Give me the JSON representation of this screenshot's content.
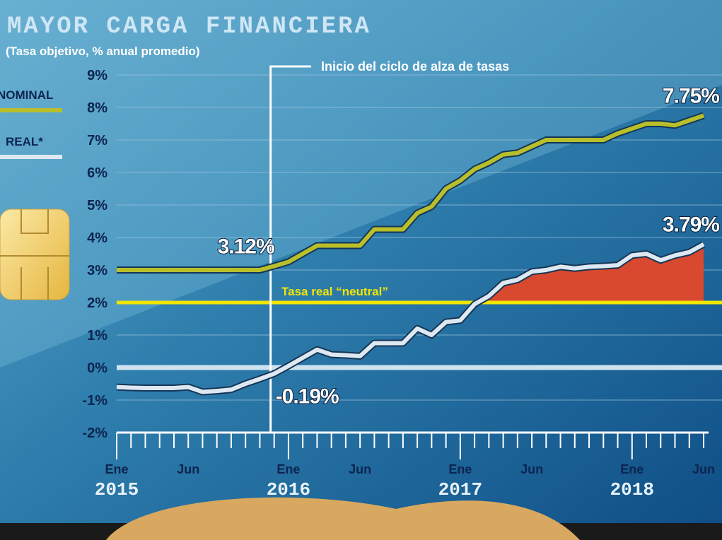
{
  "chart_data": {
    "type": "line",
    "title": "MAYOR CARGA FINANCIERA",
    "subtitle": "(Tasa objetivo, % anual promedio)",
    "categories": [
      "Ene",
      null,
      null,
      null,
      null,
      "Jun",
      null,
      null,
      null,
      null,
      null,
      null,
      "Ene",
      null,
      null,
      null,
      null,
      "Jun",
      null,
      null,
      null,
      null,
      null,
      null,
      "Ene",
      null,
      null,
      null,
      null,
      "Jun",
      null,
      null,
      null,
      null,
      null,
      null,
      "Ene",
      null,
      null,
      null,
      null,
      "Jun"
    ],
    "years": [
      {
        "at": 0,
        "label": "2015"
      },
      {
        "at": 12,
        "label": "2016"
      },
      {
        "at": 24,
        "label": "2017"
      },
      {
        "at": 36,
        "label": "2018"
      }
    ],
    "series": [
      {
        "name": "NOMINAL",
        "color": "#b8bf2a",
        "values": [
          3.0,
          3.0,
          3.0,
          3.0,
          3.0,
          3.0,
          3.0,
          3.0,
          3.0,
          3.0,
          3.0,
          3.12,
          3.25,
          3.5,
          3.75,
          3.75,
          3.75,
          3.75,
          4.25,
          4.25,
          4.25,
          4.75,
          4.95,
          5.5,
          5.75,
          6.1,
          6.3,
          6.55,
          6.6,
          6.8,
          7.0,
          7.0,
          7.0,
          7.0,
          7.0,
          7.2,
          7.35,
          7.5,
          7.5,
          7.45,
          7.6,
          7.75
        ],
        "value_labels": [
          null,
          null,
          null,
          null,
          null,
          null,
          null,
          null,
          null,
          null,
          null,
          "3.12%",
          null,
          null,
          null,
          null,
          null,
          null,
          null,
          null,
          null,
          null,
          null,
          null,
          null,
          null,
          null,
          null,
          null,
          null,
          null,
          null,
          null,
          null,
          null,
          null,
          null,
          null,
          null,
          null,
          null,
          "7.75%"
        ]
      },
      {
        "name": "REAL*",
        "color": "#dde8f2",
        "values": [
          -0.6,
          -0.62,
          -0.63,
          -0.63,
          -0.63,
          -0.6,
          -0.75,
          -0.72,
          -0.68,
          -0.5,
          -0.35,
          -0.19,
          0.05,
          0.3,
          0.55,
          0.4,
          0.38,
          0.35,
          0.75,
          0.75,
          0.75,
          1.2,
          1.0,
          1.4,
          1.45,
          1.95,
          2.2,
          2.6,
          2.7,
          2.95,
          3.0,
          3.1,
          3.05,
          3.1,
          3.12,
          3.15,
          3.45,
          3.5,
          3.3,
          3.45,
          3.55,
          3.79
        ],
        "value_labels": [
          null,
          null,
          null,
          null,
          null,
          null,
          null,
          null,
          null,
          null,
          null,
          "-0.19%",
          null,
          null,
          null,
          null,
          null,
          null,
          null,
          null,
          null,
          null,
          null,
          null,
          null,
          null,
          null,
          null,
          null,
          null,
          null,
          null,
          null,
          null,
          null,
          null,
          null,
          null,
          null,
          null,
          null,
          "3.79%"
        ]
      }
    ],
    "reference_line": {
      "value": 2,
      "label": "Tasa real “neutral”",
      "color": "#f2e600"
    },
    "excess_color": "#d9492f",
    "event": {
      "at": 11,
      "label": "Inicio del ciclo de alza de tasas"
    },
    "ylim": [
      -2,
      9
    ],
    "yticks": [
      {
        "value": -2,
        "label": "-2%"
      },
      {
        "value": -1,
        "label": "-1%"
      },
      {
        "value": 0,
        "label": "0%"
      },
      {
        "value": 1,
        "label": "1%"
      },
      {
        "value": 2,
        "label": "2%"
      },
      {
        "value": 3,
        "label": "3%"
      },
      {
        "value": 4,
        "label": "4%"
      },
      {
        "value": 5,
        "label": "5%"
      },
      {
        "value": 6,
        "label": "6%"
      },
      {
        "value": 7,
        "label": "7%"
      },
      {
        "value": 8,
        "label": "8%"
      },
      {
        "value": 9,
        "label": "9%"
      }
    ],
    "grid": true
  }
}
